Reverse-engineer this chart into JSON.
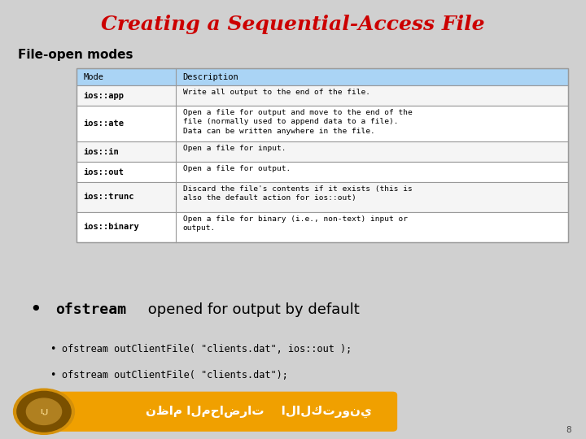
{
  "title": "Creating a Sequential-Access File",
  "title_color": "#cc0000",
  "title_fontsize": 18,
  "subtitle": "File-open modes",
  "subtitle_fontsize": 11,
  "bg_color": "#d0d0d0",
  "table_header": [
    "Mode",
    "Description"
  ],
  "table_header_bg": "#aad4f5",
  "table_rows": [
    [
      "ios::app",
      "Write all output to the end of the file."
    ],
    [
      "ios::ate",
      "Open a file for output and move to the end of the\nfile (normally used to append data to a file).\nData can be written anywhere in the file."
    ],
    [
      "ios::in",
      "Open a file for input."
    ],
    [
      "ios::out",
      "Open a file for output."
    ],
    [
      "ios::trunc",
      "Discard the file's contents if it exists (this is\nalso the default action for ios::out)"
    ],
    [
      "ios::binary",
      "Open a file for binary (i.e., non-text) input or\noutput."
    ]
  ],
  "bullet1_text": " opened for output by default",
  "bullet1_mono": "ofstream",
  "bullet2a": "ofstream outClientFile( \"clients.dat\", ios::out );",
  "bullet2b": "ofstream outClientFile( \"clients.dat\");",
  "footer_text": "نظام المحاضرات    الالكتروني",
  "footer_bg": "#f0a000",
  "page_num": "8"
}
